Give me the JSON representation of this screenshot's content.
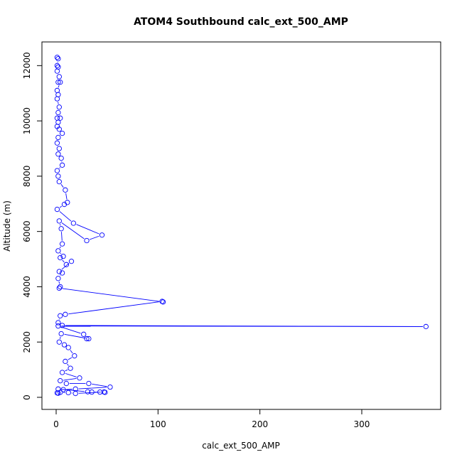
{
  "chart_data": {
    "type": "line",
    "title": "ATOM4 Southbound calc_ext_500_AMP",
    "xlabel": "calc_ext_500_AMP",
    "ylabel": "Altitude (m)",
    "xlim": [
      0,
      380
    ],
    "ylim": [
      0,
      12700
    ],
    "x_ticks": [
      0,
      100,
      200,
      300
    ],
    "y_ticks": [
      0,
      2000,
      4000,
      6000,
      8000,
      10000,
      12000
    ],
    "markers": "open-circle",
    "grid": false,
    "legend": "none",
    "series": [
      {
        "color": "#0000ff",
        "points": [
          [
            1,
            12300
          ],
          [
            2,
            12250
          ],
          [
            1,
            12000
          ],
          [
            2,
            11950
          ],
          [
            1,
            11800
          ],
          [
            3,
            11600
          ],
          [
            2,
            11400
          ],
          [
            4,
            11400
          ],
          [
            1,
            11100
          ],
          [
            2,
            10950
          ],
          [
            1,
            10800
          ],
          [
            3,
            10500
          ],
          [
            2,
            10300
          ],
          [
            1,
            10100
          ],
          [
            4,
            10100
          ],
          [
            2,
            9950
          ],
          [
            1,
            9800
          ],
          [
            3,
            9700
          ],
          [
            6,
            9550
          ],
          [
            2,
            9400
          ],
          [
            1,
            9200
          ],
          [
            3,
            9000
          ],
          [
            2,
            8800
          ],
          [
            5,
            8650
          ],
          [
            6,
            8400
          ],
          [
            1,
            8200
          ],
          [
            2,
            8000
          ],
          [
            3,
            7800
          ],
          [
            9,
            7500
          ],
          [
            11,
            7050
          ],
          [
            8,
            6980
          ],
          [
            1,
            6800
          ],
          [
            17,
            6300
          ],
          [
            45,
            5870
          ],
          [
            30,
            5670
          ],
          [
            3,
            6380
          ],
          [
            5,
            6100
          ],
          [
            6,
            5550
          ],
          [
            2,
            5300
          ],
          [
            7,
            5100
          ],
          [
            4,
            5050
          ],
          [
            10,
            4800
          ],
          [
            15,
            4920
          ],
          [
            3,
            4550
          ],
          [
            6,
            4500
          ],
          [
            2,
            4300
          ],
          [
            4,
            4000
          ],
          [
            3,
            3950
          ],
          [
            105,
            3450
          ],
          [
            104,
            3470
          ],
          [
            9,
            3000
          ],
          [
            4,
            2950
          ],
          [
            2,
            2700
          ],
          [
            6,
            2600
          ],
          [
            363,
            2560
          ],
          [
            2,
            2580
          ],
          [
            27,
            2280
          ],
          [
            30,
            2120
          ],
          [
            32,
            2120
          ],
          [
            5,
            2300
          ],
          [
            3,
            2000
          ],
          [
            8,
            1900
          ],
          [
            12,
            1800
          ],
          [
            18,
            1500
          ],
          [
            9,
            1300
          ],
          [
            14,
            1050
          ],
          [
            6,
            900
          ],
          [
            23,
            700
          ],
          [
            4,
            600
          ],
          [
            10,
            500
          ],
          [
            32,
            500
          ],
          [
            53,
            370
          ],
          [
            19,
            300
          ],
          [
            7,
            280
          ],
          [
            2,
            300
          ],
          [
            31,
            200
          ],
          [
            35,
            190
          ],
          [
            43,
            190
          ],
          [
            48,
            180
          ],
          [
            47,
            195
          ],
          [
            19,
            140
          ],
          [
            12,
            170
          ],
          [
            4,
            180
          ],
          [
            2,
            150
          ],
          [
            1,
            160
          ]
        ]
      }
    ]
  }
}
